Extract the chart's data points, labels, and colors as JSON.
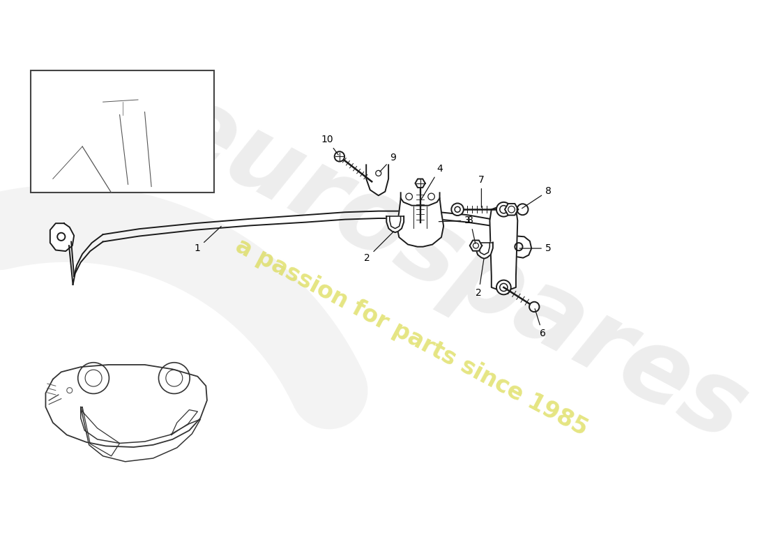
{
  "bg": "#ffffff",
  "wm_color": "#cccccc",
  "wm_yellow": "#e8e870",
  "lc": "#1a1a1a",
  "lw": 1.4,
  "figsize": [
    11.0,
    8.0
  ],
  "dpi": 100
}
